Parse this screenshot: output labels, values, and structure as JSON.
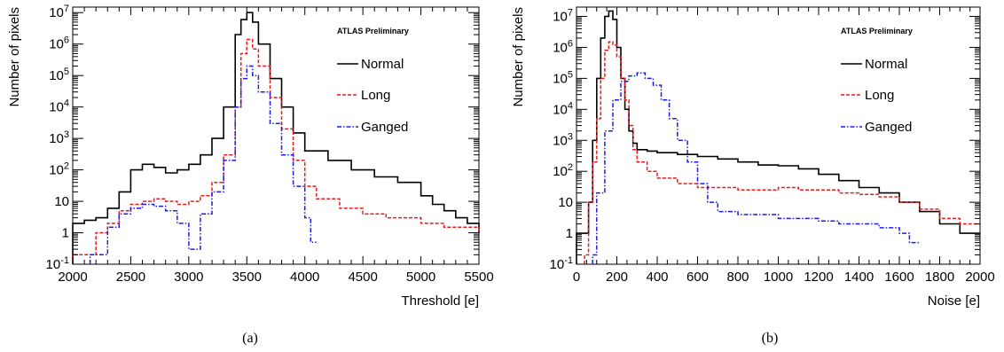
{
  "chart_data": [
    {
      "type": "line",
      "panel_label": "(a)",
      "annotation": "ATLAS Preliminary",
      "xlabel": "Threshold [e]",
      "ylabel": "Number of pixels",
      "xlim": [
        2000,
        5500
      ],
      "ylim": [
        0.1,
        15000000
      ],
      "yscale": "log",
      "legend_position": "top-right",
      "xticks": [
        2000,
        2500,
        3000,
        3500,
        4000,
        4500,
        5000,
        5500
      ],
      "yticks": [
        {
          "v": 0.1,
          "base": "10",
          "exp": "-1"
        },
        {
          "v": 1,
          "text": "1"
        },
        {
          "v": 10,
          "text": "10"
        },
        {
          "v": 100,
          "base": "10",
          "exp": "2"
        },
        {
          "v": 1000,
          "base": "10",
          "exp": "3"
        },
        {
          "v": 10000,
          "base": "10",
          "exp": "4"
        },
        {
          "v": 100000,
          "base": "10",
          "exp": "5"
        },
        {
          "v": 1000000,
          "base": "10",
          "exp": "6"
        },
        {
          "v": 10000000,
          "base": "10",
          "exp": "7"
        }
      ],
      "series": [
        {
          "name": "Normal",
          "color": "#000000",
          "style": "solid",
          "x": [
            2000,
            2100,
            2200,
            2300,
            2400,
            2500,
            2600,
            2700,
            2800,
            2900,
            3000,
            3100,
            3200,
            3300,
            3400,
            3450,
            3500,
            3550,
            3600,
            3700,
            3800,
            3900,
            4000,
            4200,
            4400,
            4600,
            4800,
            5000,
            5100,
            5200,
            5300,
            5400,
            5500
          ],
          "y": [
            2,
            2.5,
            3,
            6,
            20,
            100,
            150,
            120,
            80,
            100,
            150,
            300,
            1000,
            10000,
            2000000,
            6000000,
            10000000,
            5000000,
            1000000,
            80000,
            10000,
            1500,
            400,
            200,
            100,
            60,
            40,
            15,
            8,
            5,
            3,
            2,
            1
          ]
        },
        {
          "name": "Long",
          "color": "#e81c1c",
          "style": "dashed",
          "x": [
            2000,
            2200,
            2300,
            2400,
            2500,
            2600,
            2700,
            2800,
            2900,
            3000,
            3100,
            3200,
            3300,
            3400,
            3450,
            3500,
            3550,
            3600,
            3700,
            3800,
            3900,
            4000,
            4100,
            4300,
            4500,
            4700,
            5000,
            5200,
            5500
          ],
          "y": [
            0.2,
            1,
            2,
            5,
            8,
            10,
            12,
            10,
            8,
            10,
            15,
            40,
            300,
            10000,
            500000,
            1400000,
            700000,
            200000,
            20000,
            2000,
            200,
            30,
            12,
            6,
            4,
            3,
            2,
            1.5,
            1
          ]
        },
        {
          "name": "Ganged",
          "color": "#1c1ce8",
          "style": "dashdot",
          "x": [
            2150,
            2300,
            2400,
            2500,
            2600,
            2700,
            2800,
            2900,
            3000,
            3100,
            3200,
            3300,
            3400,
            3450,
            3500,
            3550,
            3600,
            3700,
            3800,
            3900,
            4000,
            4050
          ],
          "y": [
            0.2,
            1.5,
            4,
            6,
            8,
            7,
            5,
            2,
            0.3,
            4,
            20,
            200,
            10000,
            80000,
            200000,
            100000,
            30000,
            3000,
            300,
            30,
            3,
            0.5
          ]
        }
      ]
    },
    {
      "type": "line",
      "panel_label": "(b)",
      "annotation": "ATLAS Preliminary",
      "xlabel": "Noise [e]",
      "ylabel": "Number of pixels",
      "xlim": [
        0,
        2000
      ],
      "ylim": [
        0.1,
        20000000
      ],
      "yscale": "log",
      "legend_position": "top-right",
      "xticks": [
        0,
        200,
        400,
        600,
        800,
        1000,
        1200,
        1400,
        1600,
        1800,
        2000
      ],
      "yticks": [
        {
          "v": 0.1,
          "base": "10",
          "exp": "-1"
        },
        {
          "v": 1,
          "text": "1"
        },
        {
          "v": 10,
          "text": "10"
        },
        {
          "v": 100,
          "base": "10",
          "exp": "2"
        },
        {
          "v": 1000,
          "base": "10",
          "exp": "3"
        },
        {
          "v": 10000,
          "base": "10",
          "exp": "4"
        },
        {
          "v": 100000,
          "base": "10",
          "exp": "5"
        },
        {
          "v": 1000000,
          "base": "10",
          "exp": "6"
        },
        {
          "v": 10000000,
          "base": "10",
          "exp": "7"
        }
      ],
      "series": [
        {
          "name": "Normal",
          "color": "#000000",
          "style": "solid",
          "x": [
            0,
            20,
            40,
            60,
            80,
            100,
            120,
            140,
            160,
            180,
            200,
            220,
            240,
            260,
            280,
            300,
            350,
            400,
            500,
            600,
            700,
            800,
            900,
            1000,
            1100,
            1200,
            1300,
            1400,
            1500,
            1600,
            1700,
            1800,
            1900,
            2000
          ],
          "y": [
            1,
            1,
            1,
            10,
            1000,
            100000,
            2000000,
            10000000,
            15000000,
            8000000,
            1000000,
            100000,
            10000,
            2000,
            800,
            500,
            450,
            400,
            350,
            300,
            250,
            200,
            160,
            150,
            120,
            80,
            50,
            30,
            20,
            10,
            5,
            2,
            1,
            1
          ]
        },
        {
          "name": "Long",
          "color": "#e81c1c",
          "style": "dashed",
          "x": [
            40,
            60,
            80,
            100,
            120,
            140,
            160,
            180,
            200,
            220,
            240,
            260,
            280,
            300,
            350,
            400,
            500,
            600,
            700,
            800,
            900,
            1000,
            1100,
            1200,
            1300,
            1400,
            1500,
            1600,
            1700,
            1800,
            1900
          ],
          "y": [
            0.2,
            10,
            200,
            5000,
            100000,
            800000,
            1500000,
            1200000,
            500000,
            100000,
            20000,
            3000,
            500,
            200,
            100,
            60,
            40,
            30,
            30,
            25,
            25,
            30,
            25,
            25,
            20,
            18,
            15,
            10,
            6,
            3,
            2
          ]
        },
        {
          "name": "Ganged",
          "color": "#1c1ce8",
          "style": "dashdot",
          "x": [
            80,
            100,
            140,
            180,
            220,
            260,
            300,
            340,
            380,
            420,
            460,
            500,
            550,
            600,
            650,
            700,
            800,
            900,
            1000,
            1100,
            1200,
            1300,
            1400,
            1500,
            1600,
            1650
          ],
          "y": [
            0.2,
            20,
            2000,
            20000,
            80000,
            120000,
            150000,
            100000,
            60000,
            20000,
            5000,
            1000,
            200,
            40,
            10,
            5,
            4,
            4,
            3,
            3,
            2.5,
            2,
            2,
            1.5,
            1,
            0.5
          ]
        }
      ]
    }
  ]
}
